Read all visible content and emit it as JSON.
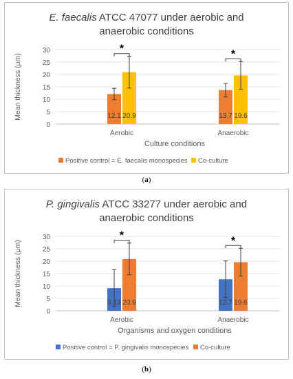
{
  "chart_data": [
    {
      "type": "bar",
      "title_italic": "E. faecalis",
      "title_rest_line1": " ATCC 47077 under aerobic and",
      "title_line2": "anaerobic conditions",
      "ylabel": "Mean thickness (μm)",
      "xlabel": "Culture conditions",
      "ylim": [
        0,
        30
      ],
      "yticks": [
        0,
        5,
        10,
        15,
        20,
        25,
        30
      ],
      "categories": [
        "Aerobic",
        "Anaerobic"
      ],
      "series": [
        {
          "name": "Positive control = E. faecalis monospecies",
          "color": "#ED7D31",
          "values": [
            12.1,
            13.7
          ],
          "labels": [
            "12.1",
            "13.7"
          ],
          "err_low": [
            9.8,
            11.0
          ],
          "err_high": [
            14.4,
            16.4
          ]
        },
        {
          "name": "Co-culture",
          "color": "#FFC000",
          "values": [
            20.9,
            19.6
          ],
          "labels": [
            "20.9",
            "19.6"
          ],
          "err_low": [
            14.5,
            14.0
          ],
          "err_high": [
            27.3,
            25.2
          ]
        }
      ],
      "significance": [
        "*",
        "*"
      ],
      "grid": true,
      "legend": "bottom"
    },
    {
      "type": "bar",
      "title_italic": "P. gingivalis",
      "title_rest_line1": " ATCC 33277 under aerobic and",
      "title_line2": "anaerobic conditions",
      "ylabel": "Mean thickness (μm)",
      "xlabel": "Organisms and oxygen conditions",
      "ylim": [
        0,
        30
      ],
      "yticks": [
        0,
        5,
        10,
        15,
        20,
        25,
        30
      ],
      "categories": [
        "Aerobic",
        "Anaerobic"
      ],
      "series": [
        {
          "name": "Positive control = P. gingivalis monospecies",
          "color": "#4472C4",
          "values": [
            9.13,
            12.7
          ],
          "labels": [
            "9.13",
            "12.7"
          ],
          "err_low": [
            1.7,
            5.3
          ],
          "err_high": [
            16.6,
            20.1
          ]
        },
        {
          "name": "Co-culture",
          "color": "#ED7D31",
          "values": [
            20.9,
            19.6
          ],
          "labels": [
            "20.9",
            "19.6"
          ],
          "err_low": [
            14.5,
            14.0
          ],
          "err_high": [
            27.3,
            25.2
          ]
        }
      ],
      "significance": [
        "*",
        "*"
      ],
      "grid": true,
      "legend": "bottom"
    }
  ],
  "captions": {
    "a_open": "(",
    "a_letter": "a",
    "a_close": ")",
    "b_open": "(",
    "b_letter": "b",
    "b_close": ")"
  }
}
